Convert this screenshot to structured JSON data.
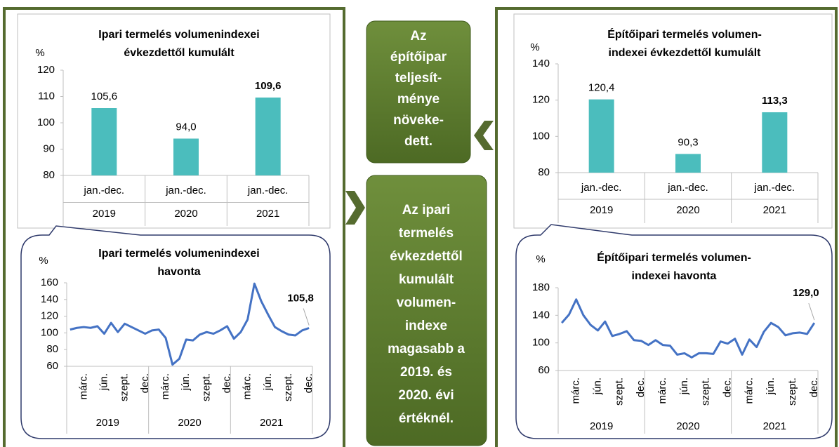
{
  "chart_data": [
    {
      "type": "bar",
      "title": [
        "Ipari termelés volumenindexei",
        "évkezdettől kumulált"
      ],
      "y_label": "%",
      "categories": [
        "jan.-dec.",
        "jan.-dec.",
        "jan.-dec."
      ],
      "groups": [
        "2019",
        "2020",
        "2021"
      ],
      "values": [
        105.6,
        94.0,
        109.6
      ],
      "value_labels": [
        "105,6",
        "94,0",
        "109,6"
      ],
      "color": "#4bbdbd",
      "ylim": [
        80,
        120
      ],
      "yticks": [
        80,
        90,
        100,
        110,
        120
      ]
    },
    {
      "type": "line",
      "title": [
        "Ipari termelés volumenindexei",
        "havonta"
      ],
      "y_label": "%",
      "categories": [
        null,
        null,
        "márc.",
        null,
        null,
        "jún.",
        null,
        null,
        "szept.",
        null,
        null,
        "dec.",
        null,
        null,
        "márc.",
        null,
        null,
        "jún.",
        null,
        null,
        "szept.",
        null,
        null,
        "dec.",
        null,
        null,
        "márc.",
        null,
        null,
        "jún.",
        null,
        null,
        "szept.",
        null,
        null,
        "dec."
      ],
      "groups": [
        "2019",
        "2020",
        "2021"
      ],
      "color": "#4472c4",
      "values": [
        104,
        106,
        107,
        106,
        108,
        99,
        112,
        101,
        111,
        107,
        103,
        99,
        103,
        104,
        94,
        62,
        69,
        92,
        91,
        98,
        101,
        99,
        103,
        108,
        93,
        101,
        116,
        159,
        138,
        122,
        107,
        102,
        98,
        97,
        103,
        105.8
      ],
      "annotation": "105,8",
      "ylim": [
        60,
        160
      ],
      "yticks": [
        60,
        80,
        100,
        120,
        140,
        160
      ]
    },
    {
      "type": "bar",
      "title": [
        "Építőipari termelés volumen-",
        "indexei évkezdettől kumulált"
      ],
      "y_label": "%",
      "categories": [
        "jan.-dec.",
        "jan.-dec.",
        "jan.-dec."
      ],
      "groups": [
        "2019",
        "2020",
        "2021"
      ],
      "values": [
        120.4,
        90.3,
        113.3
      ],
      "value_labels": [
        "120,4",
        "90,3",
        "113,3"
      ],
      "color": "#4bbdbd",
      "ylim": [
        80,
        140
      ],
      "yticks": [
        80,
        100,
        120,
        140
      ]
    },
    {
      "type": "line",
      "title": [
        "Építőipari termelés volumen-",
        "indexei havonta"
      ],
      "y_label": "%",
      "categories": [
        null,
        null,
        "márc.",
        null,
        null,
        "jún.",
        null,
        null,
        "szept.",
        null,
        null,
        "dec.",
        null,
        null,
        "márc.",
        null,
        null,
        "jún.",
        null,
        null,
        "szept.",
        null,
        null,
        "dec.",
        null,
        null,
        "márc.",
        null,
        null,
        "jún.",
        null,
        null,
        "szept.",
        null,
        null,
        "dec."
      ],
      "groups": [
        "2019",
        "2020",
        "2021"
      ],
      "color": "#4472c4",
      "values": [
        129,
        141,
        163,
        140,
        126,
        118,
        131,
        110,
        113,
        117,
        104,
        103,
        97,
        104,
        97,
        96,
        83,
        85,
        79,
        85,
        85,
        84,
        102,
        99,
        106,
        83,
        105,
        94,
        116,
        129,
        123,
        111,
        114,
        115,
        113,
        129.0
      ],
      "annotation": "129,0",
      "ylim": [
        60,
        180
      ],
      "yticks": [
        60,
        100,
        140,
        180
      ]
    }
  ],
  "callouts": [
    [
      "Az",
      "építőipar",
      "teljesít-",
      "ménye",
      "növeke-",
      "dett."
    ],
    [
      "Az ipari",
      "termelés",
      "évkezdettől",
      "kumulált",
      "volumen-",
      "indexe",
      "magasabb a",
      "2019. és",
      "2020. évi",
      "értéknél."
    ]
  ]
}
